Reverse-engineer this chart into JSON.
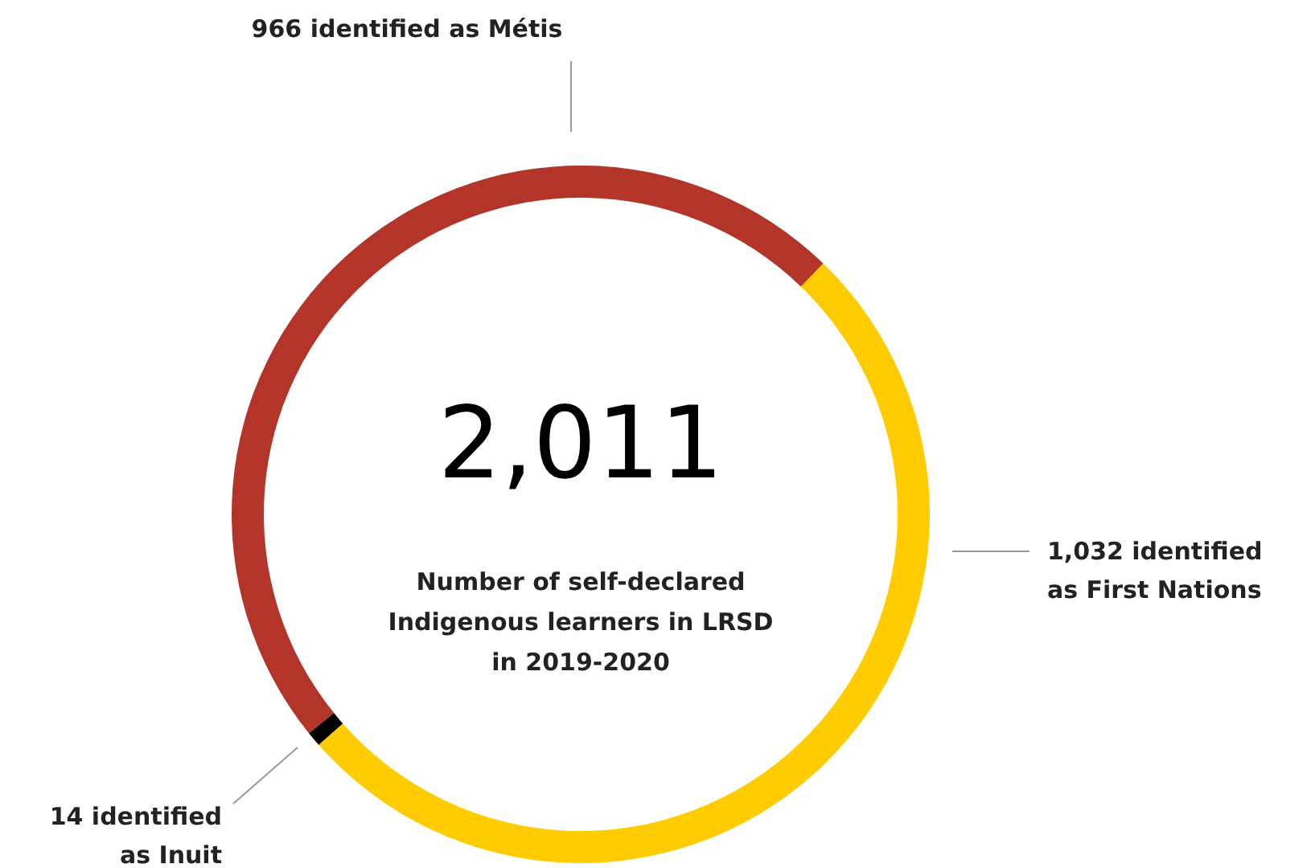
{
  "chart_data": {
    "type": "donut",
    "title": "2,011",
    "subtitle": "Number of self-declared\nIndigenous learners in LRSD\nin 2019-2020",
    "categories": [
      null,
      null,
      null
    ],
    "values": [
      1032,
      14,
      966
    ],
    "colors": [
      "#ffcc00",
      "#000000",
      "#b3352a"
    ],
    "value_labels": [
      "1,032 identified\nas First Nations",
      "14 identified\nas Inuit",
      "966 identified as Métis"
    ]
  }
}
